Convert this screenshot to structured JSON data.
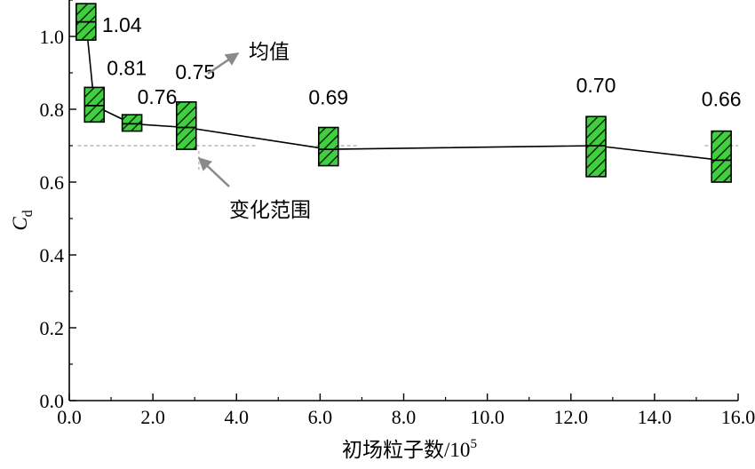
{
  "chart_data": {
    "type": "box",
    "xlabel": {
      "text": "初场粒子数/10",
      "sup": "5"
    },
    "ylabel": {
      "main": "C",
      "sub": "d"
    },
    "xlim": [
      0,
      16
    ],
    "ylim": [
      0,
      1.1
    ],
    "x_ticks": [
      {
        "value": 0,
        "label": "0.0"
      },
      {
        "value": 2,
        "label": "2.0"
      },
      {
        "value": 4,
        "label": "4.0"
      },
      {
        "value": 6,
        "label": "6.0"
      },
      {
        "value": 8,
        "label": "8.0"
      },
      {
        "value": 10,
        "label": "10.0"
      },
      {
        "value": 12,
        "label": "12.0"
      },
      {
        "value": 14,
        "label": "14.0"
      },
      {
        "value": 16,
        "label": "16.0"
      }
    ],
    "y_ticks": [
      {
        "value": 0,
        "label": "0.0"
      },
      {
        "value": 0.2,
        "label": "0.2"
      },
      {
        "value": 0.4,
        "label": "0.4"
      },
      {
        "value": 0.6,
        "label": "0.6"
      },
      {
        "value": 0.8,
        "label": "0.8"
      },
      {
        "value": 1.0,
        "label": "1.0"
      }
    ],
    "boxes": [
      {
        "x": 0.4,
        "mean": 1.04,
        "low": 0.99,
        "high": 1.09,
        "label": "1.04"
      },
      {
        "x": 0.6,
        "mean": 0.81,
        "low": 0.765,
        "high": 0.86,
        "label": "0.81"
      },
      {
        "x": 1.5,
        "mean": 0.76,
        "low": 0.74,
        "high": 0.785,
        "label": "0.76"
      },
      {
        "x": 2.8,
        "mean": 0.75,
        "low": 0.69,
        "high": 0.82,
        "label": "0.75"
      },
      {
        "x": 6.2,
        "mean": 0.69,
        "low": 0.645,
        "high": 0.75,
        "label": "0.69"
      },
      {
        "x": 12.6,
        "mean": 0.7,
        "low": 0.615,
        "high": 0.78,
        "label": "0.70"
      },
      {
        "x": 15.6,
        "mean": 0.66,
        "low": 0.6,
        "high": 0.74,
        "label": "0.66"
      }
    ],
    "mean_line": [
      {
        "x": 0.4,
        "y": 1.04
      },
      {
        "x": 0.6,
        "y": 0.81
      },
      {
        "x": 1.5,
        "y": 0.76
      },
      {
        "x": 2.8,
        "y": 0.75
      },
      {
        "x": 6.2,
        "y": 0.69
      },
      {
        "x": 12.6,
        "y": 0.7
      },
      {
        "x": 15.6,
        "y": 0.66
      }
    ],
    "reference_line": {
      "y": 0.7,
      "style": "dashed"
    },
    "annotations": [
      {
        "text": "均值",
        "points_to": "mean"
      },
      {
        "text": "变化范围",
        "points_to": "range"
      }
    ],
    "colors": {
      "box_fill": "#3fcf3f",
      "hatch": "#0a2a0a",
      "line": "#000000",
      "reference": "#aaaaaa",
      "arrow": "#8a8a8a"
    },
    "grid": false,
    "legend": "none"
  }
}
